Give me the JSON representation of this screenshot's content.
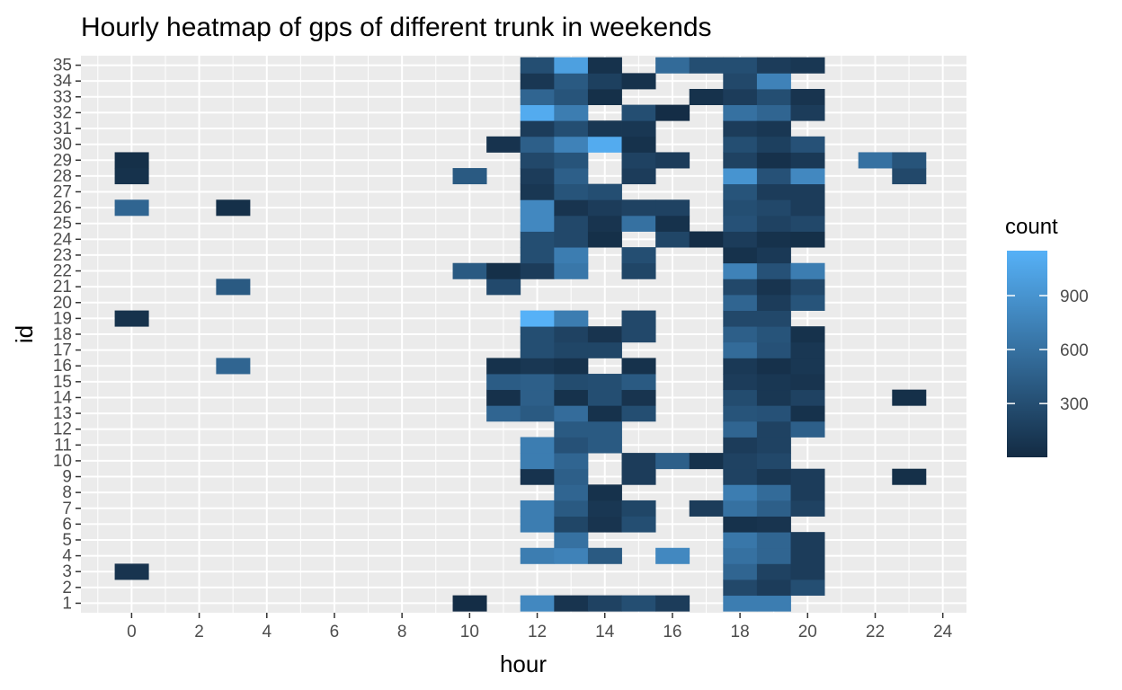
{
  "chart_data": {
    "type": "heatmap",
    "title": "Hourly heatmap of gps of different trunk in weekends",
    "xlabel": "hour",
    "ylabel": "id",
    "xlim": [
      -1.5,
      24.7
    ],
    "ylim": [
      0.4,
      35.6
    ],
    "x_ticks": [
      0,
      2,
      4,
      6,
      8,
      10,
      12,
      14,
      16,
      18,
      20,
      22,
      24
    ],
    "y_ticks": [
      1,
      2,
      3,
      4,
      5,
      6,
      7,
      8,
      9,
      10,
      11,
      12,
      13,
      14,
      15,
      16,
      17,
      18,
      19,
      20,
      21,
      22,
      23,
      24,
      25,
      26,
      27,
      28,
      29,
      30,
      31,
      32,
      33,
      34,
      35
    ],
    "grid": true,
    "legend": {
      "title": "count",
      "position": "right",
      "min": 1,
      "max": 1150,
      "breaks": [
        300,
        600,
        900
      ],
      "low_color": "#132B43",
      "high_color": "#56B1F7"
    },
    "cells": [
      [
        0,
        3,
        80
      ],
      [
        0,
        19,
        60
      ],
      [
        0,
        26,
        500
      ],
      [
        0,
        28,
        60
      ],
      [
        0,
        29,
        40
      ],
      [
        3,
        16,
        500
      ],
      [
        3,
        21,
        400
      ],
      [
        3,
        26,
        40
      ],
      [
        10,
        1,
        20
      ],
      [
        10,
        22,
        400
      ],
      [
        10,
        28,
        400
      ],
      [
        11,
        13,
        500
      ],
      [
        11,
        14,
        50
      ],
      [
        11,
        15,
        420
      ],
      [
        11,
        16,
        60
      ],
      [
        11,
        21,
        260
      ],
      [
        11,
        22,
        40
      ],
      [
        11,
        30,
        70
      ],
      [
        12,
        1,
        800
      ],
      [
        12,
        4,
        700
      ],
      [
        12,
        6,
        700
      ],
      [
        12,
        7,
        700
      ],
      [
        12,
        9,
        70
      ],
      [
        12,
        10,
        700
      ],
      [
        12,
        11,
        700
      ],
      [
        12,
        13,
        400
      ],
      [
        12,
        14,
        450
      ],
      [
        12,
        15,
        450
      ],
      [
        12,
        16,
        100
      ],
      [
        12,
        17,
        300
      ],
      [
        12,
        18,
        300
      ],
      [
        12,
        19,
        1150
      ],
      [
        12,
        22,
        150
      ],
      [
        12,
        23,
        300
      ],
      [
        12,
        24,
        300
      ],
      [
        12,
        25,
        800
      ],
      [
        12,
        26,
        800
      ],
      [
        12,
        27,
        100
      ],
      [
        12,
        28,
        150
      ],
      [
        12,
        29,
        250
      ],
      [
        12,
        30,
        450
      ],
      [
        12,
        31,
        150
      ],
      [
        12,
        32,
        1100
      ],
      [
        12,
        33,
        500
      ],
      [
        12,
        34,
        100
      ],
      [
        12,
        35,
        300
      ],
      [
        13,
        1,
        80
      ],
      [
        13,
        4,
        750
      ],
      [
        13,
        5,
        600
      ],
      [
        13,
        6,
        230
      ],
      [
        13,
        7,
        400
      ],
      [
        13,
        8,
        500
      ],
      [
        13,
        9,
        450
      ],
      [
        13,
        10,
        500
      ],
      [
        13,
        11,
        330
      ],
      [
        13,
        12,
        400
      ],
      [
        13,
        13,
        560
      ],
      [
        13,
        14,
        60
      ],
      [
        13,
        15,
        280
      ],
      [
        13,
        16,
        60
      ],
      [
        13,
        17,
        230
      ],
      [
        13,
        18,
        200
      ],
      [
        13,
        19,
        700
      ],
      [
        13,
        22,
        650
      ],
      [
        13,
        23,
        700
      ],
      [
        13,
        24,
        250
      ],
      [
        13,
        25,
        250
      ],
      [
        13,
        26,
        80
      ],
      [
        13,
        27,
        350
      ],
      [
        13,
        28,
        450
      ],
      [
        13,
        29,
        350
      ],
      [
        13,
        30,
        750
      ],
      [
        13,
        31,
        300
      ],
      [
        13,
        32,
        700
      ],
      [
        13,
        33,
        350
      ],
      [
        13,
        34,
        400
      ],
      [
        13,
        35,
        1000
      ],
      [
        14,
        1,
        200
      ],
      [
        14,
        4,
        400
      ],
      [
        14,
        6,
        80
      ],
      [
        14,
        7,
        100
      ],
      [
        14,
        8,
        60
      ],
      [
        14,
        11,
        400
      ],
      [
        14,
        12,
        400
      ],
      [
        14,
        13,
        60
      ],
      [
        14,
        14,
        300
      ],
      [
        14,
        15,
        300
      ],
      [
        14,
        17,
        230
      ],
      [
        14,
        18,
        80
      ],
      [
        14,
        24,
        40
      ],
      [
        14,
        25,
        80
      ],
      [
        14,
        26,
        150
      ],
      [
        14,
        27,
        300
      ],
      [
        14,
        30,
        1100
      ],
      [
        14,
        31,
        100
      ],
      [
        14,
        33,
        40
      ],
      [
        14,
        34,
        180
      ],
      [
        14,
        35,
        60
      ],
      [
        15,
        1,
        300
      ],
      [
        15,
        6,
        300
      ],
      [
        15,
        7,
        230
      ],
      [
        15,
        9,
        150
      ],
      [
        15,
        10,
        150
      ],
      [
        15,
        13,
        300
      ],
      [
        15,
        14,
        80
      ],
      [
        15,
        15,
        400
      ],
      [
        15,
        16,
        60
      ],
      [
        15,
        18,
        250
      ],
      [
        15,
        19,
        250
      ],
      [
        15,
        22,
        230
      ],
      [
        15,
        23,
        300
      ],
      [
        15,
        25,
        600
      ],
      [
        15,
        26,
        200
      ],
      [
        15,
        28,
        150
      ],
      [
        15,
        29,
        200
      ],
      [
        15,
        30,
        60
      ],
      [
        15,
        31,
        100
      ],
      [
        15,
        32,
        300
      ],
      [
        15,
        34,
        60
      ],
      [
        16,
        1,
        150
      ],
      [
        16,
        4,
        800
      ],
      [
        16,
        10,
        450
      ],
      [
        16,
        24,
        230
      ],
      [
        16,
        25,
        60
      ],
      [
        16,
        26,
        200
      ],
      [
        16,
        29,
        150
      ],
      [
        16,
        32,
        20
      ],
      [
        16,
        35,
        550
      ],
      [
        17,
        7,
        150
      ],
      [
        17,
        10,
        60
      ],
      [
        17,
        24,
        20
      ],
      [
        17,
        33,
        60
      ],
      [
        17,
        35,
        300
      ],
      [
        18,
        1,
        700
      ],
      [
        18,
        2,
        250
      ],
      [
        18,
        3,
        500
      ],
      [
        18,
        4,
        600
      ],
      [
        18,
        5,
        650
      ],
      [
        18,
        6,
        60
      ],
      [
        18,
        7,
        600
      ],
      [
        18,
        8,
        700
      ],
      [
        18,
        9,
        200
      ],
      [
        18,
        10,
        200
      ],
      [
        18,
        11,
        150
      ],
      [
        18,
        12,
        500
      ],
      [
        18,
        13,
        350
      ],
      [
        18,
        14,
        280
      ],
      [
        18,
        15,
        150
      ],
      [
        18,
        16,
        120
      ],
      [
        18,
        17,
        550
      ],
      [
        18,
        18,
        450
      ],
      [
        18,
        19,
        250
      ],
      [
        18,
        20,
        500
      ],
      [
        18,
        21,
        250
      ],
      [
        18,
        22,
        750
      ],
      [
        18,
        23,
        60
      ],
      [
        18,
        24,
        150
      ],
      [
        18,
        25,
        330
      ],
      [
        18,
        26,
        300
      ],
      [
        18,
        27,
        350
      ],
      [
        18,
        28,
        900
      ],
      [
        18,
        29,
        200
      ],
      [
        18,
        30,
        300
      ],
      [
        18,
        31,
        150
      ],
      [
        18,
        32,
        600
      ],
      [
        18,
        33,
        150
      ],
      [
        18,
        34,
        250
      ],
      [
        18,
        35,
        300
      ],
      [
        19,
        1,
        700
      ],
      [
        19,
        2,
        150
      ],
      [
        19,
        3,
        200
      ],
      [
        19,
        4,
        500
      ],
      [
        19,
        5,
        500
      ],
      [
        19,
        6,
        80
      ],
      [
        19,
        7,
        450
      ],
      [
        19,
        8,
        550
      ],
      [
        19,
        9,
        100
      ],
      [
        19,
        10,
        250
      ],
      [
        19,
        11,
        200
      ],
      [
        19,
        12,
        200
      ],
      [
        19,
        13,
        330
      ],
      [
        19,
        14,
        100
      ],
      [
        19,
        15,
        100
      ],
      [
        19,
        16,
        50
      ],
      [
        19,
        17,
        330
      ],
      [
        19,
        18,
        350
      ],
      [
        19,
        19,
        250
      ],
      [
        19,
        20,
        150
      ],
      [
        19,
        21,
        80
      ],
      [
        19,
        22,
        330
      ],
      [
        19,
        23,
        120
      ],
      [
        19,
        24,
        60
      ],
      [
        19,
        25,
        200
      ],
      [
        19,
        26,
        250
      ],
      [
        19,
        27,
        150
      ],
      [
        19,
        28,
        330
      ],
      [
        19,
        29,
        50
      ],
      [
        19,
        30,
        180
      ],
      [
        19,
        31,
        100
      ],
      [
        19,
        32,
        500
      ],
      [
        19,
        33,
        300
      ],
      [
        19,
        34,
        750
      ],
      [
        19,
        35,
        150
      ],
      [
        20,
        2,
        300
      ],
      [
        20,
        3,
        150
      ],
      [
        20,
        4,
        150
      ],
      [
        20,
        5,
        150
      ],
      [
        20,
        7,
        200
      ],
      [
        20,
        8,
        150
      ],
      [
        20,
        9,
        150
      ],
      [
        20,
        12,
        450
      ],
      [
        20,
        13,
        60
      ],
      [
        20,
        14,
        200
      ],
      [
        20,
        15,
        80
      ],
      [
        20,
        16,
        100
      ],
      [
        20,
        17,
        100
      ],
      [
        20,
        18,
        60
      ],
      [
        20,
        20,
        350
      ],
      [
        20,
        21,
        250
      ],
      [
        20,
        22,
        700
      ],
      [
        20,
        24,
        40
      ],
      [
        20,
        25,
        250
      ],
      [
        20,
        26,
        150
      ],
      [
        20,
        27,
        150
      ],
      [
        20,
        28,
        800
      ],
      [
        20,
        29,
        120
      ],
      [
        20,
        30,
        330
      ],
      [
        20,
        32,
        150
      ],
      [
        20,
        33,
        80
      ],
      [
        20,
        35,
        100
      ],
      [
        22,
        29,
        600
      ],
      [
        23,
        9,
        40
      ],
      [
        23,
        14,
        40
      ],
      [
        23,
        28,
        250
      ],
      [
        23,
        29,
        350
      ]
    ]
  }
}
